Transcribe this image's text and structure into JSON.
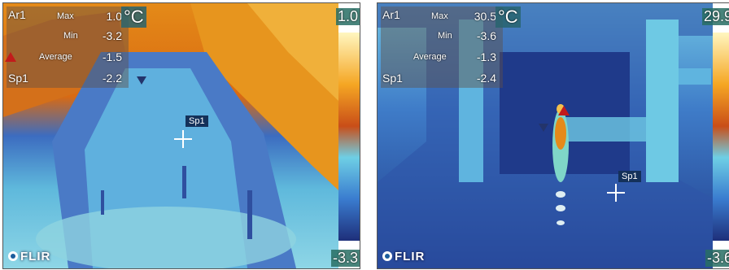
{
  "panels": [
    {
      "area_label": "Ar1",
      "max_label": "Max",
      "max_value": "1.0",
      "min_label": "Min",
      "min_value": "-3.2",
      "avg_label": "Average",
      "avg_value": "-1.5",
      "spot_label": "Sp1",
      "spot_value": "-2.2",
      "unit": "°C",
      "scale_max": "1.0",
      "scale_min": "-3.3",
      "spot_tag": "Sp1",
      "brand": "FLIR",
      "colors": {
        "hot": "#e58a1a",
        "cold": "#2f4f9f",
        "mid": "#5bc6df"
      }
    },
    {
      "area_label": "Ar1",
      "max_label": "Max",
      "max_value": "30.5",
      "min_label": "Min",
      "min_value": "-3.6",
      "avg_label": "Average",
      "avg_value": "-1.3",
      "spot_label": "Sp1",
      "spot_value": "-2.4",
      "unit": "°C",
      "scale_max": "29.9",
      "scale_min": "-3.6",
      "spot_tag": "Sp1",
      "brand": "FLIR",
      "colors": {
        "hot": "#e58a1a",
        "cold": "#1d3f8f",
        "mid": "#5bc6df"
      }
    }
  ]
}
